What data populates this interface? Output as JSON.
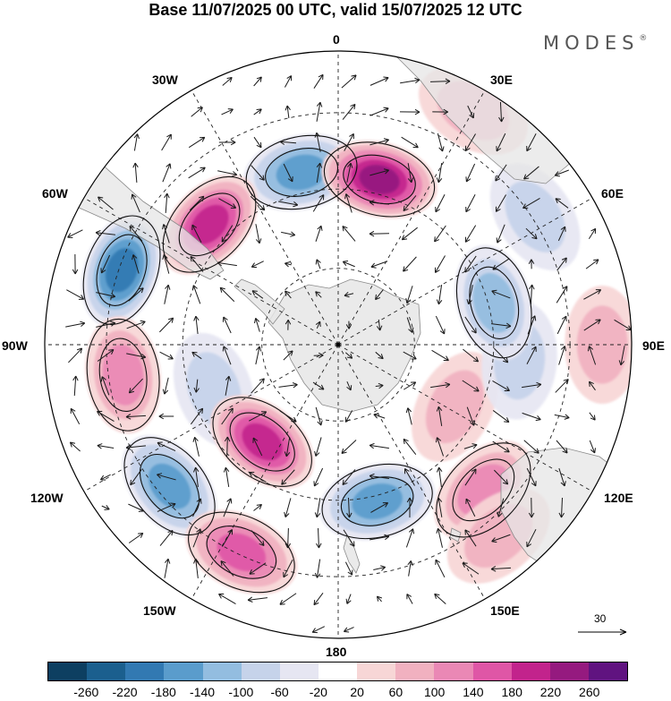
{
  "title": "Base 11/07/2025 00 UTC, valid 15/07/2025 12 UTC",
  "brand": "MODES",
  "brand_mark": "®",
  "map": {
    "projection": "south-polar-stereographic",
    "longitude_labels": {
      "top": "0",
      "bottom": "180",
      "left": "90W",
      "right": "90E",
      "upper_left": "30W",
      "upper_right": "30E",
      "mid_left": "60W",
      "mid_right": "60E",
      "lower_left": "120W",
      "lower_right": "120E",
      "bottom_left": "150W",
      "bottom_right": "150E"
    },
    "reference_vector_label": "30",
    "colors": {
      "land": "#e6e6e6",
      "coast": "#8a8a8a",
      "grid": "#222222",
      "arrow": "#1a1a1a"
    },
    "anomaly_centers": [
      {
        "name": "blue-south-atlantic",
        "lon": -12,
        "rel_r": 0.6,
        "value": -150
      },
      {
        "name": "magenta-south-atlantic",
        "lon": 14,
        "rel_r": 0.58,
        "value": 230
      },
      {
        "name": "magenta-drake",
        "lon": -47,
        "rel_r": 0.6,
        "value": 200
      },
      {
        "name": "blue-southeast-pacific",
        "lon": -71,
        "rel_r": 0.78,
        "value": -210
      },
      {
        "name": "pink-east-pacific",
        "lon": -98,
        "rel_r": 0.74,
        "value": 130
      },
      {
        "name": "blue-amundsen",
        "lon": -110,
        "rel_r": 0.45,
        "value": -90
      },
      {
        "name": "magenta-ross-sea",
        "lon": -142,
        "rel_r": 0.42,
        "value": 190
      },
      {
        "name": "blue-southwest-pacific",
        "lon": -130,
        "rel_r": 0.75,
        "value": -150
      },
      {
        "name": "blue-new-zealand",
        "lon": 166,
        "rel_r": 0.55,
        "value": -170
      },
      {
        "name": "pink-pacific-far",
        "lon": -155,
        "rel_r": 0.78,
        "value": 150
      },
      {
        "name": "pink-tasman",
        "lon": 135,
        "rel_r": 0.7,
        "value": 100
      },
      {
        "name": "pink-south-indian",
        "lon": 118,
        "rel_r": 0.45,
        "value": 90
      },
      {
        "name": "blue-indian-east",
        "lon": 95,
        "rel_r": 0.62,
        "value": -80
      },
      {
        "name": "blue-indian-central",
        "lon": 75,
        "rel_r": 0.55,
        "value": -110
      },
      {
        "name": "pink-indian-rim",
        "lon": 90,
        "rel_r": 0.9,
        "value": 90
      },
      {
        "name": "pink-south-africa",
        "lon": 30,
        "rel_r": 0.92,
        "value": 60
      },
      {
        "name": "blue-indian-west",
        "lon": 57,
        "rel_r": 0.8,
        "value": -70
      },
      {
        "name": "pink-southeast-australia",
        "lon": 140,
        "rel_r": 0.85,
        "value": 70
      }
    ]
  },
  "colorbar": {
    "colors": [
      "#0d3f61",
      "#1b5f8e",
      "#3279b2",
      "#5a9ccc",
      "#93bde0",
      "#c6d3ea",
      "#e6e6f2",
      "#ffffff",
      "#f7d6d6",
      "#f1b1c0",
      "#ea88b5",
      "#df56a6",
      "#c2238c",
      "#951a7f",
      "#601380"
    ],
    "tick_labels": [
      "-260",
      "-220",
      "-180",
      "-140",
      "-100",
      "-60",
      "-20",
      "20",
      "60",
      "100",
      "140",
      "180",
      "220",
      "260"
    ]
  }
}
